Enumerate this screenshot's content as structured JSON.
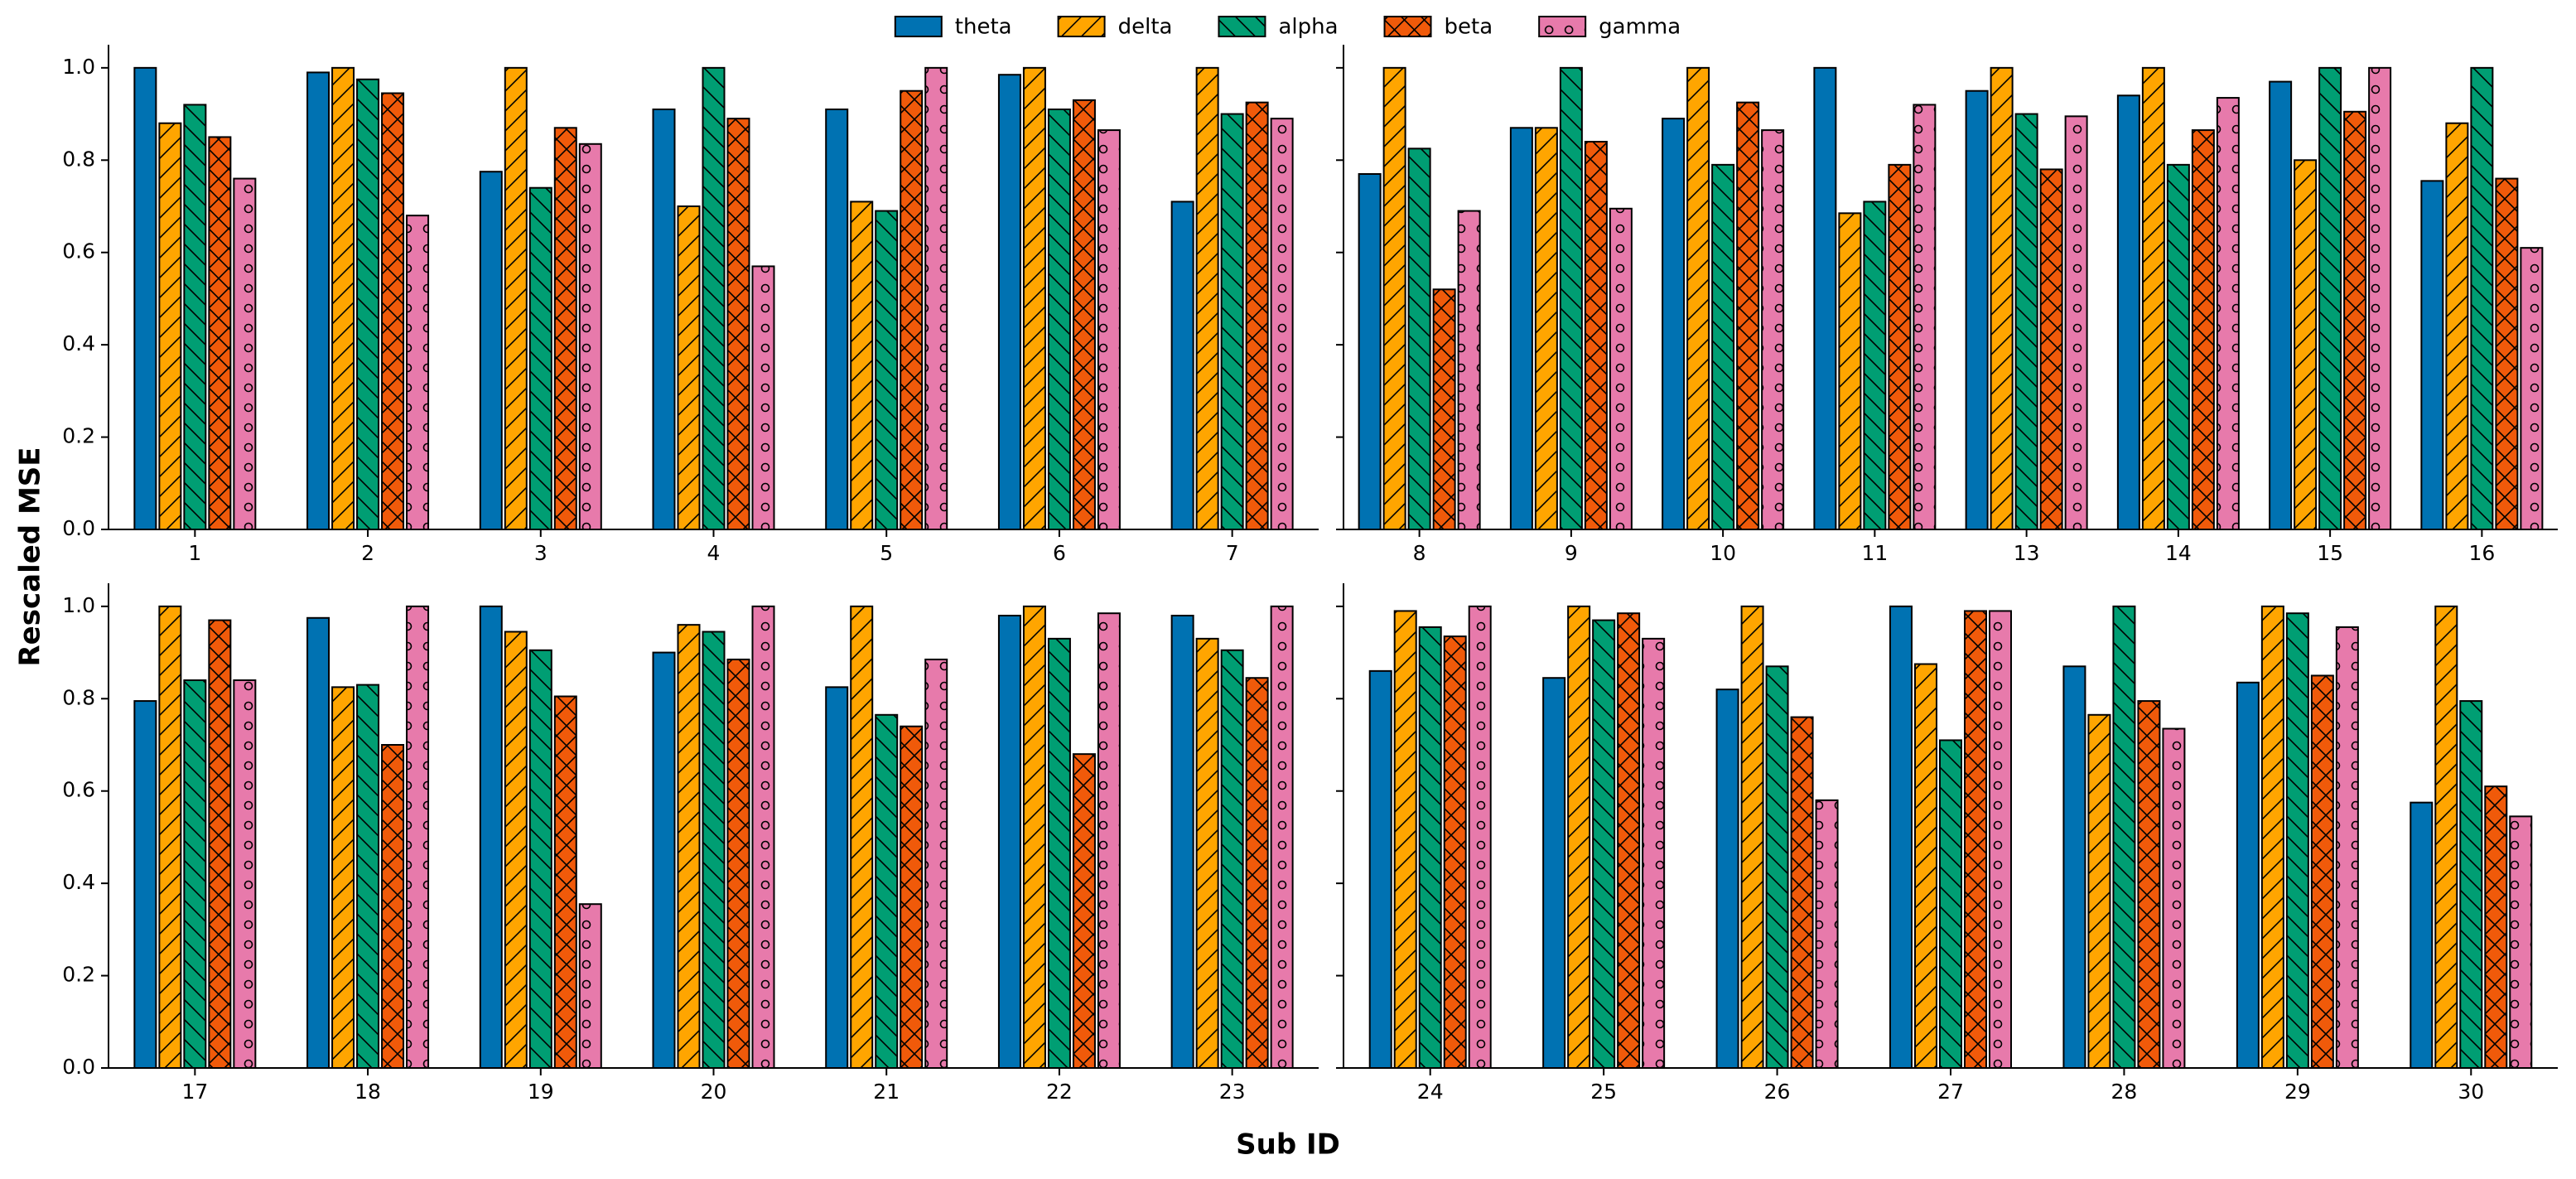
{
  "figure": {
    "ylabel": "Rescaled MSE",
    "xlabel": "Sub ID"
  },
  "chart_data": [
    {
      "type": "bar",
      "categories": [
        "1",
        "2",
        "3",
        "4",
        "5",
        "6",
        "7"
      ],
      "ylim": [
        0,
        1.05
      ],
      "yticks": [
        {
          "value": 0,
          "label": "0.0"
        },
        {
          "value": 0.2,
          "label": "0.2"
        },
        {
          "value": 0.4,
          "label": "0.4"
        },
        {
          "value": 0.6,
          "label": "0.6"
        },
        {
          "value": 0.8,
          "label": "0.8"
        },
        {
          "value": 1,
          "label": "1.0"
        }
      ],
      "series": [
        {
          "name": "theta",
          "color": "#0072b2",
          "hatch": "",
          "values": [
            1.0,
            0.99,
            0.775,
            0.91,
            0.91,
            0.985,
            0.71
          ]
        },
        {
          "name": "delta",
          "color": "#ffa500",
          "hatch": "/",
          "values": [
            0.88,
            1.0,
            1.0,
            0.7,
            0.71,
            1.0,
            1.0
          ]
        },
        {
          "name": "alpha",
          "color": "#009e73",
          "hatch": "\\",
          "values": [
            0.92,
            0.975,
            0.74,
            1.0,
            0.69,
            0.91,
            0.9
          ]
        },
        {
          "name": "beta",
          "color": "#f05a0a",
          "hatch": "x",
          "values": [
            0.85,
            0.945,
            0.87,
            0.89,
            0.95,
            0.93,
            0.925
          ]
        },
        {
          "name": "gamma",
          "color": "#e77aab",
          "hatch": "o",
          "values": [
            0.76,
            0.68,
            0.835,
            0.57,
            1.0,
            0.865,
            0.89
          ]
        }
      ]
    },
    {
      "type": "bar",
      "categories": [
        "8",
        "9",
        "10",
        "11",
        "13",
        "14",
        "15",
        "16"
      ],
      "ylim": [
        0,
        1.05
      ],
      "sharey": true,
      "series": [
        {
          "name": "theta",
          "color": "#0072b2",
          "hatch": "",
          "values": [
            0.77,
            0.87,
            0.89,
            1.0,
            0.95,
            0.94,
            0.97,
            0.755
          ]
        },
        {
          "name": "delta",
          "color": "#ffa500",
          "hatch": "/",
          "values": [
            1.0,
            0.87,
            1.0,
            0.685,
            1.0,
            1.0,
            0.8,
            0.88
          ]
        },
        {
          "name": "alpha",
          "color": "#009e73",
          "hatch": "\\",
          "values": [
            0.825,
            1.0,
            0.79,
            0.71,
            0.9,
            0.79,
            1.0,
            1.0
          ]
        },
        {
          "name": "beta",
          "color": "#f05a0a",
          "hatch": "x",
          "values": [
            0.52,
            0.84,
            0.925,
            0.79,
            0.78,
            0.865,
            0.905,
            0.76
          ]
        },
        {
          "name": "gamma",
          "color": "#e77aab",
          "hatch": "o",
          "values": [
            0.69,
            0.695,
            0.865,
            0.92,
            0.895,
            0.935,
            1.0,
            0.61
          ]
        }
      ]
    },
    {
      "type": "bar",
      "categories": [
        "17",
        "18",
        "19",
        "20",
        "21",
        "22",
        "23"
      ],
      "ylim": [
        0,
        1.05
      ],
      "yticks": [
        {
          "value": 0,
          "label": "0.0"
        },
        {
          "value": 0.2,
          "label": "0.2"
        },
        {
          "value": 0.4,
          "label": "0.4"
        },
        {
          "value": 0.6,
          "label": "0.6"
        },
        {
          "value": 0.8,
          "label": "0.8"
        },
        {
          "value": 1,
          "label": "1.0"
        }
      ],
      "series": [
        {
          "name": "theta",
          "color": "#0072b2",
          "hatch": "",
          "values": [
            0.795,
            0.975,
            1.0,
            0.9,
            0.825,
            0.98,
            0.98
          ]
        },
        {
          "name": "delta",
          "color": "#ffa500",
          "hatch": "/",
          "values": [
            1.0,
            0.825,
            0.945,
            0.96,
            1.0,
            1.0,
            0.93
          ]
        },
        {
          "name": "alpha",
          "color": "#009e73",
          "hatch": "\\",
          "values": [
            0.84,
            0.83,
            0.905,
            0.945,
            0.765,
            0.93,
            0.905
          ]
        },
        {
          "name": "beta",
          "color": "#f05a0a",
          "hatch": "x",
          "values": [
            0.97,
            0.7,
            0.805,
            0.885,
            0.74,
            0.68,
            0.845
          ]
        },
        {
          "name": "gamma",
          "color": "#e77aab",
          "hatch": "o",
          "values": [
            0.84,
            1.0,
            0.355,
            1.0,
            0.885,
            0.985,
            1.0
          ]
        }
      ]
    },
    {
      "type": "bar",
      "categories": [
        "24",
        "25",
        "26",
        "27",
        "28",
        "29",
        "30"
      ],
      "ylim": [
        0,
        1.05
      ],
      "sharey": true,
      "series": [
        {
          "name": "theta",
          "color": "#0072b2",
          "hatch": "",
          "values": [
            0.86,
            0.845,
            0.82,
            1.0,
            0.87,
            0.835,
            0.575
          ]
        },
        {
          "name": "delta",
          "color": "#ffa500",
          "hatch": "/",
          "values": [
            0.99,
            1.0,
            1.0,
            0.875,
            0.765,
            1.0,
            1.0
          ]
        },
        {
          "name": "alpha",
          "color": "#009e73",
          "hatch": "\\",
          "values": [
            0.955,
            0.97,
            0.87,
            0.71,
            1.0,
            0.985,
            0.795
          ]
        },
        {
          "name": "beta",
          "color": "#f05a0a",
          "hatch": "x",
          "values": [
            0.935,
            0.985,
            0.76,
            0.99,
            0.795,
            0.85,
            0.61
          ]
        },
        {
          "name": "gamma",
          "color": "#e77aab",
          "hatch": "o",
          "values": [
            1.0,
            0.93,
            0.58,
            0.99,
            0.735,
            0.955,
            0.545
          ]
        }
      ]
    }
  ]
}
